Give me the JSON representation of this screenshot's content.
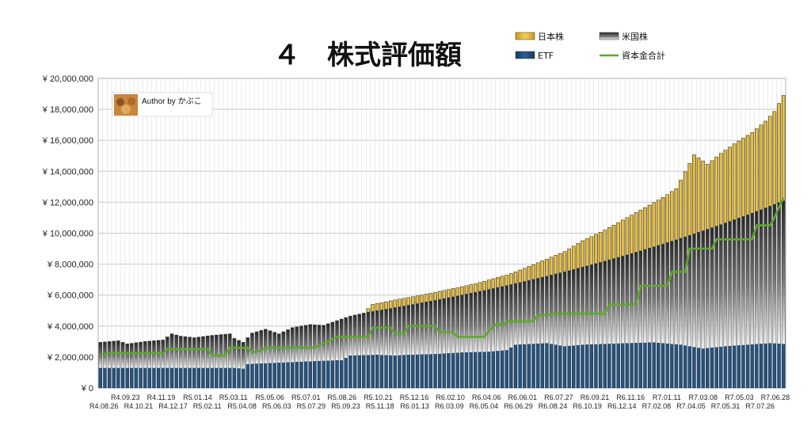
{
  "chart_data": {
    "type": "bar",
    "stacked": true,
    "title": "４　株式評価額",
    "author_label": "Author by かぶこ",
    "ylim": [
      0,
      20000000
    ],
    "ytick_step": 2000000,
    "ytick_labels": [
      "¥ 0",
      "¥ 2,000,000",
      "¥ 4,000,000",
      "¥ 6,000,000",
      "¥ 8,000,000",
      "¥ 10,000,000",
      "¥ 12,000,000",
      "¥ 14,000,000",
      "¥ 16,000,000",
      "¥ 18,000,000",
      "¥ 20,000,000"
    ],
    "grid": true,
    "legend_position": "top-right",
    "series_style": {
      "日本株": {
        "color": "#d9b236"
      },
      "米国株": {
        "color": "#4a4a4a"
      },
      "ETF": {
        "color": "#1f4e79"
      },
      "資本金合計": {
        "color": "#5fa82c"
      }
    },
    "legend": [
      {
        "name": "日本株",
        "color": "#e8c547"
      },
      {
        "name": "米国株",
        "color": "#555555"
      },
      {
        "name": "ETF",
        "color": "#1f4e79"
      },
      {
        "name": "資本金合計",
        "color": "#5fa82c"
      }
    ],
    "x_labels_top": [
      "R4.09.23",
      "R4.11.19",
      "R5.01.14",
      "R5.03.11",
      "R5.05.06",
      "R5.07.01",
      "R5.08.26",
      "R5.10.21",
      "R5.12.16",
      "R6.02.10",
      "R6.04.06",
      "R6.06.01",
      "R6.07.27",
      "R6.09.21",
      "R6.11.16",
      "R7.01.11",
      "R7.03.08",
      "R7.05.03",
      "R7.06.28"
    ],
    "x_labels_bottom": [
      "R4.08.26",
      "R4.10.21",
      "R4.12.17",
      "R5.02.11",
      "R5.04.08",
      "R5.06.03",
      "R5.07.29",
      "R5.09.23",
      "R5.11.18",
      "R6.01.13",
      "R6.03.09",
      "R6.05.04",
      "R6.06.29",
      "R6.08.24",
      "R6.10.19",
      "R6.12.14",
      "R7.02.08",
      "R7.04.05",
      "R7.05.31",
      "R7.07.26"
    ],
    "bar_count": 154,
    "anchors": {
      "total": [
        [
          0,
          2950000
        ],
        [
          4,
          3050000
        ],
        [
          6,
          2850000
        ],
        [
          10,
          3000000
        ],
        [
          14,
          3100000
        ],
        [
          16,
          3500000
        ],
        [
          18,
          3350000
        ],
        [
          21,
          3250000
        ],
        [
          25,
          3400000
        ],
        [
          29,
          3500000
        ],
        [
          30,
          3200000
        ],
        [
          32,
          2950000
        ],
        [
          34,
          3550000
        ],
        [
          37,
          3800000
        ],
        [
          40,
          3500000
        ],
        [
          43,
          3900000
        ],
        [
          47,
          4100000
        ],
        [
          50,
          4050000
        ],
        [
          53,
          4350000
        ],
        [
          56,
          4650000
        ],
        [
          60,
          4900000
        ],
        [
          63,
          4850000
        ],
        [
          59,
          4750000
        ],
        [
          60,
          4900000
        ],
        [
          63,
          4850000
        ],
        [
          59,
          4750000
        ],
        [
          60,
          4900000
        ],
        [
          63,
          4850000
        ],
        [
          59,
          4750000
        ],
        [
          60,
          4900000
        ],
        [
          63,
          4850000
        ]
      ],
      "etf": [
        [
          0,
          1300000
        ],
        [
          30,
          1300000
        ],
        [
          32,
          1250000
        ],
        [
          33,
          1550000
        ],
        [
          41,
          1650000
        ],
        [
          49,
          1750000
        ],
        [
          54,
          1800000
        ],
        [
          56,
          2100000
        ],
        [
          62,
          2150000
        ],
        [
          66,
          2100000
        ],
        [
          69,
          2150000
        ],
        [
          75,
          2200000
        ],
        [
          81,
          2300000
        ],
        [
          87,
          2350000
        ],
        [
          91,
          2450000
        ],
        [
          93,
          2800000
        ],
        [
          100,
          2900000
        ],
        [
          104,
          2700000
        ],
        [
          108,
          2800000
        ],
        [
          118,
          2900000
        ],
        [
          124,
          2950000
        ],
        [
          130,
          2800000
        ],
        [
          135,
          2550000
        ],
        [
          140,
          2700000
        ],
        [
          150,
          2900000
        ],
        [
          153,
          2850000
        ]
      ],
      "jp": [
        [
          0,
          0
        ],
        [
          59,
          0
        ],
        [
          61,
          450000
        ],
        [
          67,
          500000
        ],
        [
          72,
          500000
        ],
        [
          84,
          550000
        ],
        [
          92,
          700000
        ],
        [
          98,
          1000000
        ],
        [
          104,
          1300000
        ],
        [
          108,
          1700000
        ],
        [
          113,
          2000000
        ],
        [
          118,
          2400000
        ],
        [
          122,
          2700000
        ],
        [
          126,
          3000000
        ],
        [
          129,
          3300000
        ],
        [
          131,
          4200000
        ],
        [
          133,
          5100000
        ],
        [
          136,
          4200000
        ],
        [
          139,
          4600000
        ],
        [
          142,
          4900000
        ],
        [
          146,
          5200000
        ],
        [
          149,
          5600000
        ],
        [
          151,
          6000000
        ],
        [
          153,
          6800000
        ]
      ],
      "capital": [
        [
          0,
          2150000
        ],
        [
          2,
          2250000
        ],
        [
          14,
          2250000
        ],
        [
          15,
          2500000
        ],
        [
          24,
          2500000
        ],
        [
          25,
          2100000
        ],
        [
          28,
          2100000
        ],
        [
          29,
          2600000
        ],
        [
          33,
          2600000
        ],
        [
          34,
          2300000
        ],
        [
          36,
          2400000
        ],
        [
          37,
          2600000
        ],
        [
          48,
          2600000
        ],
        [
          50,
          2900000
        ],
        [
          51,
          3000000
        ],
        [
          53,
          3300000
        ],
        [
          60,
          3300000
        ],
        [
          61,
          3900000
        ],
        [
          65,
          3900000
        ],
        [
          66,
          3500000
        ],
        [
          68,
          3500000
        ],
        [
          69,
          4000000
        ],
        [
          75,
          4000000
        ],
        [
          76,
          3600000
        ],
        [
          79,
          3600000
        ],
        [
          80,
          3300000
        ],
        [
          86,
          3300000
        ],
        [
          87,
          3700000
        ],
        [
          89,
          4200000
        ],
        [
          90,
          4000000
        ],
        [
          91,
          4300000
        ],
        [
          97,
          4300000
        ],
        [
          98,
          4700000
        ],
        [
          100,
          4700000
        ],
        [
          101,
          4800000
        ],
        [
          113,
          4800000
        ],
        [
          114,
          5400000
        ],
        [
          120,
          5400000
        ],
        [
          121,
          6600000
        ],
        [
          127,
          6600000
        ],
        [
          128,
          7500000
        ],
        [
          131,
          7500000
        ],
        [
          132,
          9000000
        ],
        [
          137,
          9000000
        ],
        [
          138,
          9600000
        ],
        [
          146,
          9600000
        ],
        [
          147,
          10500000
        ],
        [
          150,
          10500000
        ],
        [
          151,
          11000000
        ],
        [
          153,
          12300000
        ]
      ]
    }
  }
}
